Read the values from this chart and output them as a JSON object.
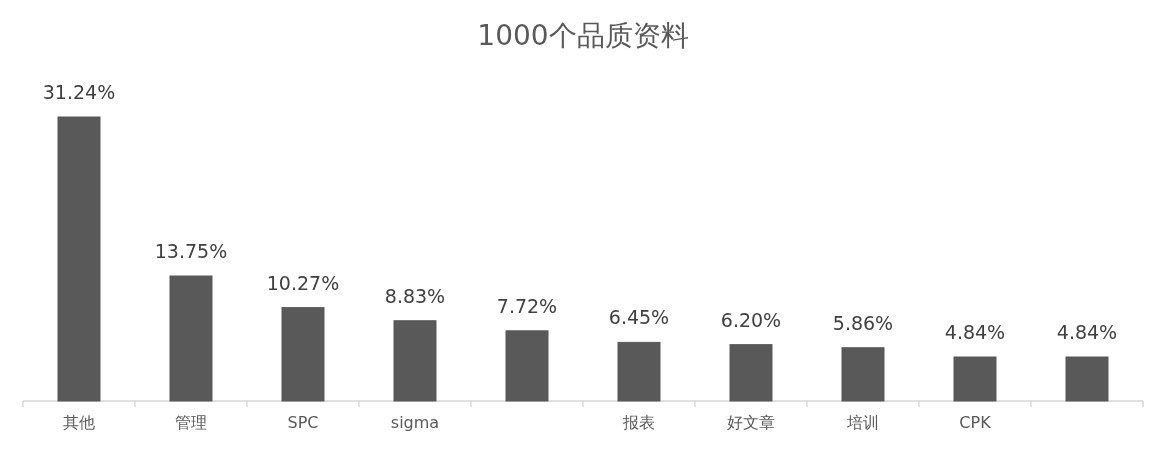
{
  "chart_data": {
    "type": "bar",
    "title": "1000个品质资料",
    "categories": [
      "其他",
      "管理",
      "SPC",
      "sigma",
      null,
      "报表",
      "好文章",
      "培训",
      "CPK",
      null
    ],
    "values": [
      31.24,
      13.75,
      10.27,
      8.83,
      7.72,
      6.45,
      6.2,
      5.86,
      4.84,
      4.84
    ],
    "value_labels": [
      "31.24%",
      "13.75%",
      "10.27%",
      "8.83%",
      "7.72%",
      "6.45%",
      "6.20%",
      "5.86%",
      "4.84%",
      "4.84%"
    ],
    "color": "#595959"
  }
}
